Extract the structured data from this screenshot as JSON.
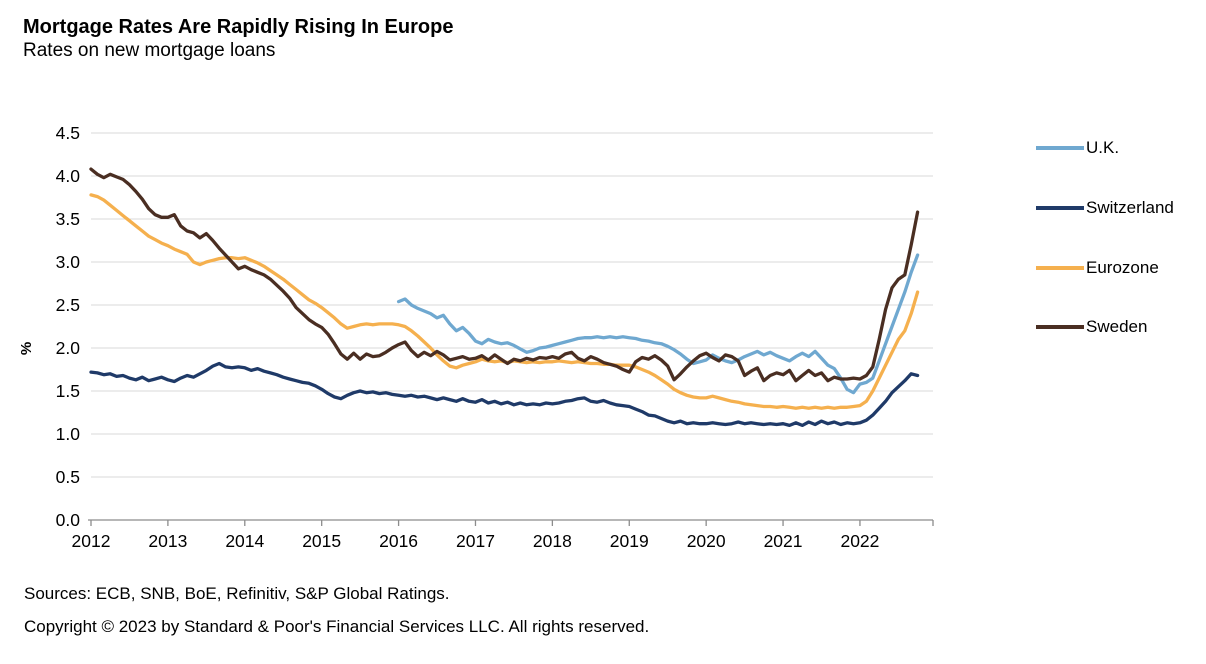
{
  "chart_data": {
    "type": "line",
    "title": "Mortgage Rates Are Rapidly Rising In Europe",
    "subtitle": "Rates on new mortgage loans",
    "ylabel": "%",
    "xlabel": "",
    "xlim": [
      2012,
      2022.95
    ],
    "ylim": [
      0.0,
      4.5
    ],
    "y_ticks": [
      0.0,
      0.5,
      1.0,
      1.5,
      2.0,
      2.5,
      3.0,
      3.5,
      4.0,
      4.5
    ],
    "x_ticks": [
      2012,
      2013,
      2014,
      2015,
      2016,
      2017,
      2018,
      2019,
      2020,
      2021,
      2022
    ],
    "grid": "horizontal",
    "legend_position": "right",
    "x_step": 0.0833333,
    "colors": {
      "uk": "#6FA8D0",
      "switzerland": "#1F3A68",
      "eurozone": "#F5B04E",
      "sweden": "#4A2E22",
      "gridline": "#D9D9D9",
      "axis": "#8C8C8C",
      "text": "#000000"
    },
    "series": [
      {
        "name": "U.K.",
        "color": "#6FA8D0",
        "x_start": 2016.0,
        "values": [
          2.54,
          2.57,
          2.5,
          2.46,
          2.43,
          2.4,
          2.35,
          2.38,
          2.28,
          2.2,
          2.24,
          2.17,
          2.08,
          2.05,
          2.1,
          2.07,
          2.05,
          2.06,
          2.03,
          1.99,
          1.95,
          1.97,
          2.0,
          2.01,
          2.03,
          2.05,
          2.07,
          2.09,
          2.11,
          2.12,
          2.12,
          2.13,
          2.12,
          2.13,
          2.12,
          2.13,
          2.12,
          2.11,
          2.09,
          2.08,
          2.06,
          2.05,
          2.02,
          1.98,
          1.93,
          1.87,
          1.82,
          1.84,
          1.86,
          1.92,
          1.88,
          1.85,
          1.83,
          1.86,
          1.9,
          1.93,
          1.96,
          1.92,
          1.95,
          1.91,
          1.88,
          1.85,
          1.9,
          1.94,
          1.9,
          1.96,
          1.88,
          1.8,
          1.76,
          1.65,
          1.52,
          1.48,
          1.58,
          1.6,
          1.65,
          1.85,
          2.05,
          2.25,
          2.45,
          2.65,
          2.88,
          3.08
        ]
      },
      {
        "name": "Switzerland",
        "color": "#1F3A68",
        "x_start": 2012.0,
        "values": [
          1.72,
          1.71,
          1.69,
          1.7,
          1.67,
          1.68,
          1.65,
          1.63,
          1.66,
          1.62,
          1.64,
          1.66,
          1.63,
          1.61,
          1.65,
          1.68,
          1.66,
          1.7,
          1.74,
          1.79,
          1.82,
          1.78,
          1.77,
          1.78,
          1.77,
          1.74,
          1.76,
          1.73,
          1.71,
          1.69,
          1.66,
          1.64,
          1.62,
          1.6,
          1.59,
          1.56,
          1.52,
          1.47,
          1.43,
          1.41,
          1.45,
          1.48,
          1.5,
          1.48,
          1.49,
          1.47,
          1.48,
          1.46,
          1.45,
          1.44,
          1.45,
          1.43,
          1.44,
          1.42,
          1.4,
          1.42,
          1.4,
          1.38,
          1.41,
          1.38,
          1.37,
          1.4,
          1.36,
          1.38,
          1.35,
          1.37,
          1.34,
          1.36,
          1.34,
          1.35,
          1.34,
          1.36,
          1.35,
          1.36,
          1.38,
          1.39,
          1.41,
          1.42,
          1.38,
          1.37,
          1.39,
          1.36,
          1.34,
          1.33,
          1.32,
          1.29,
          1.26,
          1.22,
          1.21,
          1.18,
          1.15,
          1.13,
          1.15,
          1.12,
          1.13,
          1.12,
          1.12,
          1.13,
          1.12,
          1.11,
          1.12,
          1.14,
          1.12,
          1.13,
          1.12,
          1.11,
          1.12,
          1.11,
          1.12,
          1.1,
          1.13,
          1.1,
          1.14,
          1.11,
          1.15,
          1.12,
          1.14,
          1.11,
          1.13,
          1.12,
          1.13,
          1.16,
          1.22,
          1.3,
          1.38,
          1.48,
          1.55,
          1.62,
          1.7,
          1.68
        ]
      },
      {
        "name": "Eurozone",
        "color": "#F5B04E",
        "x_start": 2012.0,
        "values": [
          3.78,
          3.76,
          3.72,
          3.66,
          3.6,
          3.54,
          3.48,
          3.42,
          3.36,
          3.3,
          3.26,
          3.22,
          3.19,
          3.15,
          3.12,
          3.09,
          3.0,
          2.97,
          3.0,
          3.02,
          3.04,
          3.05,
          3.05,
          3.04,
          3.05,
          3.02,
          2.99,
          2.95,
          2.9,
          2.85,
          2.8,
          2.74,
          2.68,
          2.62,
          2.56,
          2.52,
          2.47,
          2.41,
          2.35,
          2.28,
          2.23,
          2.25,
          2.27,
          2.28,
          2.27,
          2.28,
          2.28,
          2.28,
          2.27,
          2.25,
          2.2,
          2.14,
          2.07,
          2.0,
          1.92,
          1.85,
          1.79,
          1.77,
          1.8,
          1.82,
          1.84,
          1.87,
          1.85,
          1.84,
          1.85,
          1.83,
          1.85,
          1.84,
          1.83,
          1.84,
          1.83,
          1.84,
          1.84,
          1.85,
          1.84,
          1.83,
          1.84,
          1.83,
          1.82,
          1.82,
          1.81,
          1.81,
          1.8,
          1.8,
          1.8,
          1.78,
          1.75,
          1.72,
          1.68,
          1.63,
          1.58,
          1.52,
          1.48,
          1.45,
          1.43,
          1.42,
          1.42,
          1.44,
          1.42,
          1.4,
          1.38,
          1.37,
          1.35,
          1.34,
          1.33,
          1.32,
          1.32,
          1.31,
          1.32,
          1.31,
          1.3,
          1.31,
          1.3,
          1.31,
          1.3,
          1.31,
          1.3,
          1.31,
          1.31,
          1.32,
          1.33,
          1.38,
          1.5,
          1.65,
          1.8,
          1.95,
          2.1,
          2.2,
          2.4,
          2.65
        ]
      },
      {
        "name": "Sweden",
        "color": "#4A2E22",
        "x_start": 2012.0,
        "values": [
          4.08,
          4.02,
          3.98,
          4.02,
          3.99,
          3.96,
          3.9,
          3.82,
          3.73,
          3.62,
          3.55,
          3.52,
          3.52,
          3.55,
          3.42,
          3.36,
          3.34,
          3.28,
          3.33,
          3.25,
          3.16,
          3.08,
          3.0,
          2.92,
          2.95,
          2.91,
          2.88,
          2.85,
          2.8,
          2.73,
          2.66,
          2.58,
          2.47,
          2.4,
          2.33,
          2.28,
          2.24,
          2.16,
          2.05,
          1.93,
          1.87,
          1.94,
          1.87,
          1.93,
          1.9,
          1.91,
          1.95,
          2.0,
          2.04,
          2.07,
          1.97,
          1.9,
          1.95,
          1.91,
          1.96,
          1.92,
          1.86,
          1.88,
          1.9,
          1.87,
          1.88,
          1.91,
          1.86,
          1.92,
          1.87,
          1.82,
          1.87,
          1.85,
          1.88,
          1.86,
          1.89,
          1.88,
          1.9,
          1.88,
          1.93,
          1.95,
          1.88,
          1.85,
          1.9,
          1.87,
          1.83,
          1.81,
          1.79,
          1.75,
          1.72,
          1.84,
          1.89,
          1.87,
          1.91,
          1.86,
          1.79,
          1.63,
          1.7,
          1.78,
          1.85,
          1.91,
          1.94,
          1.89,
          1.85,
          1.92,
          1.9,
          1.85,
          1.68,
          1.73,
          1.77,
          1.62,
          1.68,
          1.71,
          1.69,
          1.74,
          1.62,
          1.68,
          1.74,
          1.68,
          1.71,
          1.62,
          1.66,
          1.64,
          1.64,
          1.65,
          1.64,
          1.68,
          1.78,
          2.1,
          2.45,
          2.7,
          2.8,
          2.85,
          3.2,
          3.58
        ]
      }
    ]
  },
  "footer": {
    "sources": "Sources: ECB, SNB, BoE, Refinitiv, S&P Global Ratings.",
    "copyright": "Copyright © 2023 by Standard & Poor's Financial Services LLC. All rights reserved."
  }
}
